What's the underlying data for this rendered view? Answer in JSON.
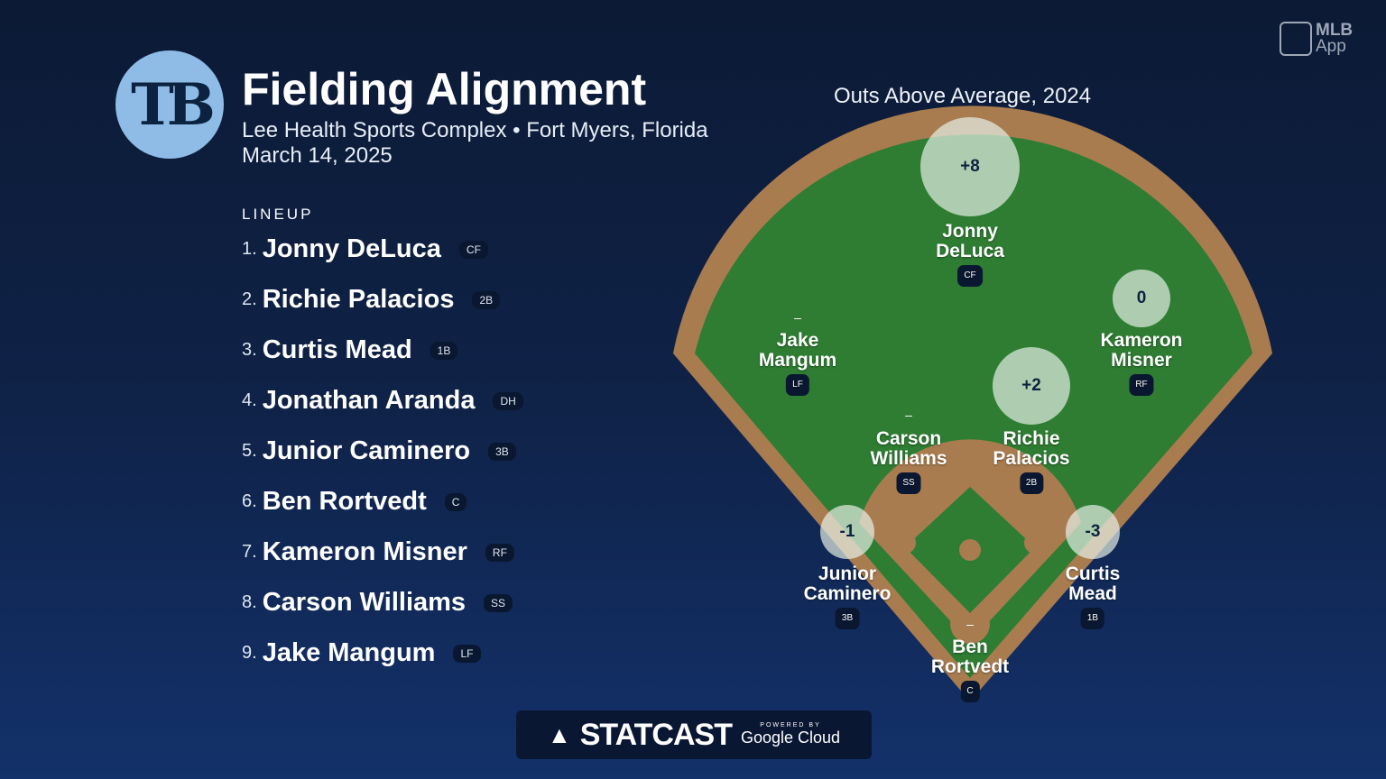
{
  "header": {
    "team_logo": "TB",
    "title": "Fielding Alignment",
    "venue": "Lee Health Sports Complex • Fort Myers, Florida",
    "date": "March 14, 2025"
  },
  "brand": {
    "app": "MLB",
    "app_sub": "App"
  },
  "lineup": {
    "heading": "LINEUP",
    "items": [
      {
        "num": "1.",
        "name": "Jonny DeLuca",
        "pos": "CF"
      },
      {
        "num": "2.",
        "name": "Richie Palacios",
        "pos": "2B"
      },
      {
        "num": "3.",
        "name": "Curtis Mead",
        "pos": "1B"
      },
      {
        "num": "4.",
        "name": "Jonathan Aranda",
        "pos": "DH"
      },
      {
        "num": "5.",
        "name": "Junior Caminero",
        "pos": "3B"
      },
      {
        "num": "6.",
        "name": "Ben Rortvedt",
        "pos": "C"
      },
      {
        "num": "7.",
        "name": "Kameron Misner",
        "pos": "RF"
      },
      {
        "num": "8.",
        "name": "Carson Williams",
        "pos": "SS"
      },
      {
        "num": "9.",
        "name": "Jake Mangum",
        "pos": "LF"
      }
    ]
  },
  "field": {
    "title": "Outs Above Average, 2024",
    "players": [
      {
        "first": "Jonny",
        "last": "DeLuca",
        "pos": "CF",
        "oaa": "+8"
      },
      {
        "first": "Jake",
        "last": "Mangum",
        "pos": "LF",
        "oaa": "–"
      },
      {
        "first": "Kameron",
        "last": "Misner",
        "pos": "RF",
        "oaa": "0"
      },
      {
        "first": "Carson",
        "last": "Williams",
        "pos": "SS",
        "oaa": "–"
      },
      {
        "first": "Richie",
        "last": "Palacios",
        "pos": "2B",
        "oaa": "+2"
      },
      {
        "first": "Junior",
        "last": "Caminero",
        "pos": "3B",
        "oaa": "-1"
      },
      {
        "first": "Curtis",
        "last": "Mead",
        "pos": "1B",
        "oaa": "-3"
      },
      {
        "first": "Ben",
        "last": "Rortvedt",
        "pos": "C",
        "oaa": "–"
      }
    ]
  },
  "footer": {
    "statcast": "STATCAST",
    "powered": "POWERED BY",
    "cloud": "Google Cloud"
  },
  "colors": {
    "grass": "#2e7d32",
    "dirt": "#a97c50",
    "bg": "#0f2247"
  }
}
